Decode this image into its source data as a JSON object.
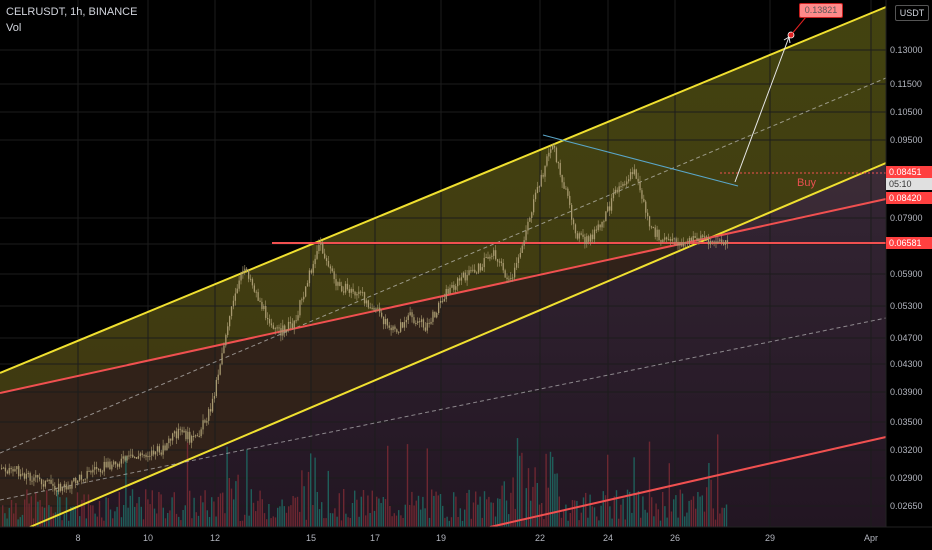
{
  "header": {
    "symbol": "CELRUSDT, 1h, BINANCE",
    "indicator": "Vol"
  },
  "currency_button": "USDT",
  "target_label": "0.13821",
  "price_tags": {
    "current_price": "0.08451",
    "countdown": "05:10",
    "red_line_price": "0.08420",
    "support_price": "0.06581"
  },
  "buy_label": "Buy",
  "colors": {
    "background": "#000000",
    "channel_line": "#f0e030",
    "red_line": "#f05050",
    "candle": "#a89a70",
    "countdown_bg": "#e0e0e0"
  },
  "chart_data": {
    "type": "candlestick",
    "symbol": "CELRUSDT",
    "timeframe": "1h",
    "exchange": "BINANCE",
    "x_tick_labels": [
      "8",
      "10",
      "12",
      "15",
      "17",
      "19",
      "22",
      "24",
      "26",
      "29",
      "Apr"
    ],
    "y_tick_labels": [
      "0.13000",
      "0.11500",
      "0.10500",
      "0.09500",
      "0.07900",
      "0.06900",
      "0.05900",
      "0.05300",
      "0.04700",
      "0.04300",
      "0.03900",
      "0.03500",
      "0.03200",
      "0.02900",
      "0.02650"
    ],
    "price_path": [
      [
        "2021-03-06 00:00",
        0.03
      ],
      [
        "2021-03-07 00:00",
        0.0285
      ],
      [
        "2021-03-07 12:00",
        0.028
      ],
      [
        "2021-03-08 12:00",
        0.03
      ],
      [
        "2021-03-09 12:00",
        0.031
      ],
      [
        "2021-03-10 12:00",
        0.032
      ],
      [
        "2021-03-11 00:00",
        0.034
      ],
      [
        "2021-03-11 12:00",
        0.033
      ],
      [
        "2021-03-12 00:00",
        0.037
      ],
      [
        "2021-03-12 12:00",
        0.05
      ],
      [
        "2021-03-13 00:00",
        0.061
      ],
      [
        "2021-03-13 12:00",
        0.053
      ],
      [
        "2021-03-14 00:00",
        0.048
      ],
      [
        "2021-03-14 12:00",
        0.05
      ],
      [
        "2021-03-15 00:00",
        0.06
      ],
      [
        "2021-03-15 06:00",
        0.066
      ],
      [
        "2021-03-15 18:00",
        0.057
      ],
      [
        "2021-03-16 12:00",
        0.055
      ],
      [
        "2021-03-17 00:00",
        0.052
      ],
      [
        "2021-03-17 12:00",
        0.048
      ],
      [
        "2021-03-18 00:00",
        0.051
      ],
      [
        "2021-03-18 12:00",
        0.049
      ],
      [
        "2021-03-19 00:00",
        0.055
      ],
      [
        "2021-03-19 12:00",
        0.058
      ],
      [
        "2021-03-20 00:00",
        0.06
      ],
      [
        "2021-03-20 12:00",
        0.064
      ],
      [
        "2021-03-21 00:00",
        0.057
      ],
      [
        "2021-03-21 06:00",
        0.062
      ],
      [
        "2021-03-21 12:00",
        0.076
      ],
      [
        "2021-03-22 00:00",
        0.085
      ],
      [
        "2021-03-22 06:00",
        0.094
      ],
      [
        "2021-03-22 12:00",
        0.085
      ],
      [
        "2021-03-23 00:00",
        0.073
      ],
      [
        "2021-03-23 06:00",
        0.066
      ],
      [
        "2021-03-23 18:00",
        0.076
      ],
      [
        "2021-03-24 06:00",
        0.083
      ],
      [
        "2021-03-24 18:00",
        0.085
      ],
      [
        "2021-03-25 06:00",
        0.074
      ],
      [
        "2021-03-25 18:00",
        0.07
      ],
      [
        "2021-03-26 06:00",
        0.068
      ],
      [
        "2021-03-26 18:00",
        0.072
      ],
      [
        "2021-03-27 06:00",
        0.068
      ],
      [
        "2021-03-27 18:00",
        0.07
      ],
      [
        "2021-03-28 00:00",
        0.082
      ],
      [
        "2021-03-28 04:00",
        0.0845
      ]
    ],
    "horizontal_lines": [
      {
        "name": "support",
        "price": 0.06581,
        "color": "#f05050"
      },
      {
        "name": "buy",
        "price": 0.08451,
        "color": "#f05050",
        "style": "dotted"
      }
    ],
    "projection_target": 0.13821,
    "annotations": [
      "Buy",
      "0.13821"
    ]
  }
}
